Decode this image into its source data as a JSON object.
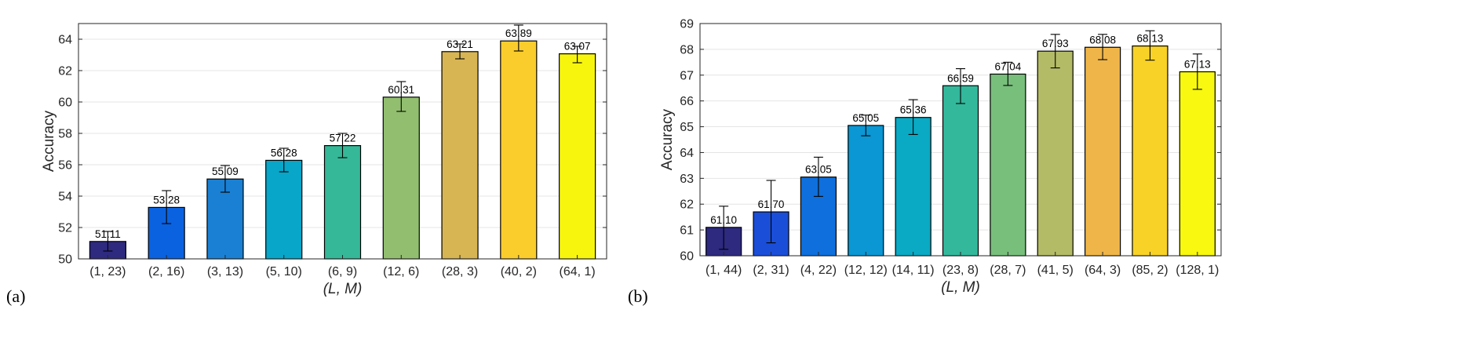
{
  "chart_data": [
    {
      "type": "bar",
      "panel_label": "(a)",
      "categories": [
        "(1, 23)",
        "(2, 16)",
        "(3, 13)",
        "(5, 10)",
        "(6, 9)",
        "(12, 6)",
        "(28, 3)",
        "(40, 2)",
        "(64, 1)"
      ],
      "values": [
        51.11,
        53.28,
        55.09,
        56.28,
        57.22,
        60.31,
        63.21,
        63.89,
        63.07
      ],
      "value_labels": [
        "51.11",
        "53.28",
        "55.09",
        "56.28",
        "57.22",
        "60.31",
        "63.21",
        "63.89",
        "63.07"
      ],
      "error_low": [
        50.5,
        52.25,
        54.25,
        55.55,
        56.45,
        59.4,
        62.75,
        63.25,
        62.5
      ],
      "error_high": [
        51.75,
        54.35,
        55.95,
        57.05,
        58.0,
        61.3,
        63.7,
        64.9,
        63.55
      ],
      "colors": [
        "#2e2a80",
        "#0a62e0",
        "#1a80d4",
        "#08a6c8",
        "#35b897",
        "#92bf6f",
        "#d7b553",
        "#fbcd2c",
        "#f7f50d"
      ],
      "xlabel": "(L, M)",
      "ylabel": "Accuracy",
      "ylim": [
        50,
        65
      ],
      "yticks": [
        50,
        52,
        54,
        56,
        58,
        60,
        62,
        64
      ],
      "grid": true
    },
    {
      "type": "bar",
      "panel_label": "(b)",
      "categories": [
        "(1, 44)",
        "(2, 31)",
        "(4, 22)",
        "(12, 12)",
        "(14, 11)",
        "(23, 8)",
        "(28, 7)",
        "(41, 5)",
        "(64, 3)",
        "(85, 2)",
        "(128, 1)"
      ],
      "values": [
        61.1,
        61.7,
        63.05,
        65.05,
        65.36,
        66.59,
        67.04,
        67.93,
        68.08,
        68.13,
        67.13
      ],
      "value_labels": [
        "61.10",
        "61.70",
        "63.05",
        "65.05",
        "65.36",
        "66.59",
        "67.04",
        "67.93",
        "68.08",
        "68.13",
        "67.13"
      ],
      "error_low": [
        60.25,
        60.5,
        62.3,
        64.65,
        64.7,
        65.9,
        66.6,
        67.28,
        67.6,
        67.58,
        66.45
      ],
      "error_high": [
        61.92,
        62.92,
        63.82,
        65.45,
        66.05,
        67.25,
        67.5,
        68.58,
        68.58,
        68.72,
        67.82
      ],
      "colors": [
        "#2d2a80",
        "#1b4ed8",
        "#0f6fdc",
        "#0a97d4",
        "#0aa9c4",
        "#33b89c",
        "#78bf7c",
        "#b4bb67",
        "#efb548",
        "#f8d226",
        "#f8f810"
      ],
      "xlabel": "(L, M)",
      "ylabel": "Accuracy",
      "ylim": [
        60,
        69
      ],
      "yticks": [
        60,
        61,
        62,
        63,
        64,
        65,
        66,
        67,
        68,
        69
      ],
      "grid": true
    }
  ]
}
